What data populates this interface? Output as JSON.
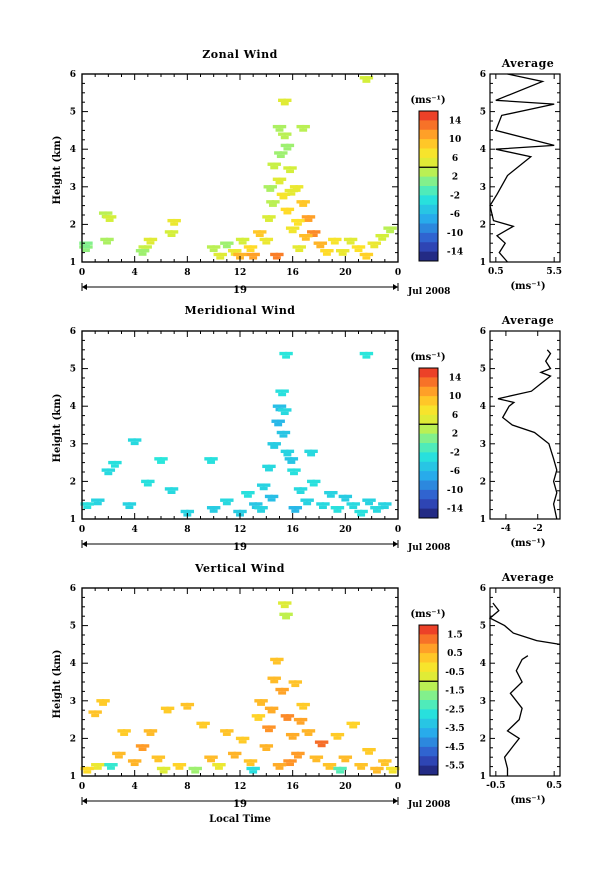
{
  "chart_data": [
    {
      "type": "heatmap",
      "title": "Zonal Wind",
      "ylabel": "Height (km)",
      "xticks": [
        "0",
        "4",
        "8",
        "12",
        "16",
        "20",
        "0"
      ],
      "yticks": [
        "1",
        "2",
        "3",
        "4",
        "5",
        "6"
      ],
      "xlim": [
        0,
        24
      ],
      "ylim": [
        1,
        6
      ],
      "date_axis": {
        "day": "19",
        "month_year": "Jul 2008"
      },
      "colorbar": {
        "unit": "(ms⁻¹)",
        "ticks": [
          "14",
          "10",
          "6",
          "2",
          "-2",
          "-6",
          "-10",
          "-14"
        ],
        "range": [
          -16,
          16
        ]
      },
      "average_profile": {
        "title": "Average",
        "xlabel": "(ms⁻¹)",
        "xticks": [
          "0.5",
          "5.5"
        ],
        "xlim": [
          0,
          6
        ],
        "points": [
          [
            1.5,
            1.0
          ],
          [
            0.8,
            1.25
          ],
          [
            1.3,
            1.5
          ],
          [
            0.6,
            1.7
          ],
          [
            2.0,
            1.95
          ],
          [
            0.3,
            2.1
          ],
          [
            0.0,
            2.5
          ],
          [
            0.6,
            2.8
          ],
          [
            1.5,
            3.3
          ],
          [
            3.5,
            3.8
          ],
          [
            0.5,
            4.0
          ],
          [
            5.5,
            4.1
          ],
          [
            0.5,
            4.5
          ],
          [
            1.0,
            4.9
          ],
          [
            5.5,
            5.2
          ],
          [
            0.5,
            5.3
          ],
          [
            4.5,
            5.8
          ],
          [
            1.5,
            6.0
          ]
        ]
      },
      "cells": [
        [
          0.3,
          1.4,
          1.5
        ],
        [
          0.3,
          1.5,
          1.0
        ],
        [
          1.8,
          2.3,
          3.0
        ],
        [
          2.1,
          2.2,
          4.0
        ],
        [
          1.9,
          1.6,
          2.5
        ],
        [
          4.8,
          1.4,
          3.5
        ],
        [
          4.6,
          1.3,
          2.0
        ],
        [
          5.2,
          1.6,
          5.0
        ],
        [
          7.0,
          2.1,
          6.0
        ],
        [
          6.8,
          1.8,
          4.0
        ],
        [
          10.0,
          1.4,
          3.0
        ],
        [
          10.5,
          1.2,
          5.0
        ],
        [
          11.0,
          1.5,
          2.0
        ],
        [
          11.6,
          1.3,
          6.0
        ],
        [
          12.2,
          1.6,
          4.0
        ],
        [
          12.8,
          1.4,
          8.0
        ],
        [
          13.5,
          1.8,
          9.0
        ],
        [
          14.0,
          1.6,
          6.0
        ],
        [
          14.2,
          2.2,
          4.5
        ],
        [
          14.5,
          2.6,
          3.0
        ],
        [
          14.3,
          3.0,
          2.5
        ],
        [
          14.6,
          3.6,
          3.5
        ],
        [
          15.0,
          3.2,
          5.0
        ],
        [
          15.3,
          2.8,
          7.0
        ],
        [
          15.6,
          2.4,
          8.0
        ],
        [
          15.1,
          3.9,
          2.0
        ],
        [
          15.8,
          3.5,
          4.0
        ],
        [
          16.3,
          3.0,
          6.0
        ],
        [
          16.8,
          2.6,
          9.0
        ],
        [
          17.2,
          2.2,
          11.0
        ],
        [
          17.6,
          1.8,
          12.0
        ],
        [
          18.1,
          1.5,
          10.0
        ],
        [
          18.6,
          1.3,
          8.0
        ],
        [
          19.2,
          1.6,
          7.0
        ],
        [
          16.0,
          1.9,
          6.5
        ],
        [
          16.5,
          1.4,
          5.5
        ],
        [
          17.0,
          1.7,
          9.5
        ],
        [
          19.8,
          1.3,
          6.0
        ],
        [
          20.4,
          1.6,
          5.0
        ],
        [
          21.0,
          1.4,
          7.5
        ],
        [
          21.6,
          1.2,
          8.5
        ],
        [
          22.2,
          1.5,
          6.0
        ],
        [
          22.8,
          1.7,
          4.0
        ],
        [
          23.4,
          1.9,
          3.0
        ],
        [
          15.4,
          4.4,
          3.0
        ],
        [
          15.6,
          4.1,
          2.0
        ],
        [
          15.4,
          5.3,
          5.0
        ],
        [
          15.0,
          4.6,
          2.5
        ],
        [
          16.8,
          4.6,
          3.0
        ],
        [
          21.6,
          5.9,
          4.0
        ],
        [
          13.0,
          1.2,
          11.0
        ],
        [
          14.8,
          1.2,
          12.5
        ],
        [
          12.0,
          1.2,
          10.0
        ],
        [
          16.4,
          2.1,
          7.5
        ],
        [
          15.9,
          2.9,
          5.5
        ]
      ]
    },
    {
      "type": "heatmap",
      "title": "Meridional Wind",
      "ylabel": "Height (km)",
      "xticks": [
        "0",
        "4",
        "8",
        "12",
        "16",
        "20",
        "0"
      ],
      "yticks": [
        "1",
        "2",
        "3",
        "4",
        "5",
        "6"
      ],
      "xlim": [
        0,
        24
      ],
      "ylim": [
        1,
        6
      ],
      "date_axis": {
        "day": "19",
        "month_year": "Jul 2008"
      },
      "colorbar": {
        "unit": "(ms⁻¹)",
        "ticks": [
          "14",
          "10",
          "6",
          "2",
          "-2",
          "-6",
          "-10",
          "-14"
        ],
        "range": [
          -16,
          16
        ]
      },
      "average_profile": {
        "title": "Average",
        "xlabel": "(ms⁻¹)",
        "xticks": [
          "-4",
          "-2"
        ],
        "xlim": [
          -5,
          -0.6
        ],
        "points": [
          [
            -0.8,
            1.0
          ],
          [
            -1.0,
            1.4
          ],
          [
            -0.8,
            1.7
          ],
          [
            -1.0,
            2.0
          ],
          [
            -0.8,
            2.3
          ],
          [
            -1.0,
            2.6
          ],
          [
            -1.3,
            3.0
          ],
          [
            -2.2,
            3.3
          ],
          [
            -3.6,
            3.5
          ],
          [
            -4.2,
            3.7
          ],
          [
            -3.8,
            4.0
          ],
          [
            -3.5,
            4.1
          ],
          [
            -4.5,
            4.2
          ],
          [
            -2.4,
            4.4
          ],
          [
            -1.8,
            4.6
          ],
          [
            -1.2,
            4.8
          ],
          [
            -1.8,
            4.9
          ],
          [
            -1.2,
            5.0
          ],
          [
            -1.5,
            5.2
          ],
          [
            -1.2,
            5.4
          ],
          [
            -1.4,
            5.5
          ]
        ]
      },
      "cells": [
        [
          0.4,
          1.4,
          -3.0
        ],
        [
          1.2,
          1.5,
          -4.0
        ],
        [
          2.0,
          2.3,
          -3.5
        ],
        [
          2.5,
          2.5,
          -3.0
        ],
        [
          4.0,
          3.1,
          -3.5
        ],
        [
          3.6,
          1.4,
          -4.0
        ],
        [
          5.0,
          2.0,
          -3.0
        ],
        [
          6.0,
          2.6,
          -2.5
        ],
        [
          6.8,
          1.8,
          -3.5
        ],
        [
          8.0,
          1.2,
          -4.0
        ],
        [
          9.8,
          2.6,
          -3.0
        ],
        [
          10.0,
          1.3,
          -4.5
        ],
        [
          11.0,
          1.5,
          -3.5
        ],
        [
          12.0,
          1.2,
          -4.5
        ],
        [
          12.6,
          1.7,
          -3.0
        ],
        [
          13.2,
          1.4,
          -5.0
        ],
        [
          13.8,
          1.9,
          -4.0
        ],
        [
          14.2,
          2.4,
          -3.5
        ],
        [
          14.6,
          3.0,
          -4.5
        ],
        [
          14.9,
          3.6,
          -6.0
        ],
        [
          15.3,
          3.3,
          -5.0
        ],
        [
          15.6,
          2.8,
          -4.0
        ],
        [
          16.1,
          2.3,
          -3.0
        ],
        [
          16.6,
          1.8,
          -3.5
        ],
        [
          17.1,
          1.5,
          -4.0
        ],
        [
          17.6,
          2.0,
          -3.0
        ],
        [
          18.3,
          1.4,
          -3.5
        ],
        [
          18.9,
          1.7,
          -4.0
        ],
        [
          19.4,
          1.3,
          -3.0
        ],
        [
          20.0,
          1.6,
          -4.5
        ],
        [
          20.6,
          1.4,
          -3.5
        ],
        [
          21.2,
          1.2,
          -3.0
        ],
        [
          21.8,
          1.5,
          -4.0
        ],
        [
          22.4,
          1.3,
          -3.5
        ],
        [
          23.0,
          1.4,
          -4.0
        ],
        [
          15.2,
          4.4,
          -3.0
        ],
        [
          15.0,
          4.0,
          -5.5
        ],
        [
          15.5,
          5.4,
          -2.5
        ],
        [
          21.6,
          5.4,
          -2.5
        ],
        [
          15.4,
          3.9,
          -3.5
        ],
        [
          15.9,
          2.6,
          -5.0
        ],
        [
          14.4,
          1.6,
          -5.5
        ],
        [
          16.2,
          1.3,
          -6.0
        ],
        [
          13.6,
          1.3,
          -4.0
        ],
        [
          17.4,
          2.8,
          -3.5
        ]
      ]
    },
    {
      "type": "heatmap",
      "title": "Vertical Wind",
      "ylabel": "Height (km)",
      "xlabel": "Local Time",
      "xticks": [
        "0",
        "4",
        "8",
        "12",
        "16",
        "20",
        "0"
      ],
      "yticks": [
        "1",
        "2",
        "3",
        "4",
        "5",
        "6"
      ],
      "xlim": [
        0,
        24
      ],
      "ylim": [
        1,
        6
      ],
      "date_axis": {
        "day": "19",
        "month_year": "Jul 2008"
      },
      "colorbar": {
        "unit": "(ms⁻¹)",
        "ticks": [
          "1.5",
          "0.5",
          "-0.5",
          "-1.5",
          "-2.5",
          "-3.5",
          "-4.5",
          "-5.5"
        ],
        "range": [
          -6,
          2
        ]
      },
      "average_profile": {
        "title": "Average",
        "xlabel": "(ms⁻¹)",
        "xticks": [
          "-0.5",
          "0.5"
        ],
        "xlim": [
          -0.6,
          0.6
        ],
        "points": [
          [
            -0.3,
            1.0
          ],
          [
            -0.3,
            1.2
          ],
          [
            -0.35,
            1.5
          ],
          [
            -0.2,
            1.8
          ],
          [
            -0.1,
            2.0
          ],
          [
            -0.3,
            2.2
          ],
          [
            -0.1,
            2.5
          ],
          [
            -0.05,
            2.8
          ],
          [
            -0.25,
            3.2
          ],
          [
            -0.05,
            3.5
          ],
          [
            -0.15,
            3.8
          ],
          [
            -0.05,
            4.1
          ],
          [
            0.05,
            4.2
          ]
        ],
        "upper_points": [
          [
            0.6,
            4.5
          ],
          [
            0.2,
            4.6
          ],
          [
            -0.2,
            4.8
          ],
          [
            -0.35,
            5.0
          ],
          [
            -0.6,
            5.2
          ],
          [
            -0.45,
            5.4
          ],
          [
            -0.55,
            5.6
          ]
        ]
      },
      "cells": [
        [
          0.4,
          1.2,
          0.0
        ],
        [
          1.2,
          1.3,
          -0.5
        ],
        [
          1.0,
          2.7,
          0.3
        ],
        [
          1.6,
          3.0,
          0.2
        ],
        [
          2.2,
          1.3,
          -2.5
        ],
        [
          2.8,
          1.6,
          0.4
        ],
        [
          3.2,
          2.2,
          0.2
        ],
        [
          4.0,
          1.4,
          0.5
        ],
        [
          4.6,
          1.8,
          0.8
        ],
        [
          5.2,
          2.2,
          0.4
        ],
        [
          5.8,
          1.5,
          0.3
        ],
        [
          6.2,
          1.2,
          -0.8
        ],
        [
          6.5,
          2.8,
          0.2
        ],
        [
          7.4,
          1.3,
          0.1
        ],
        [
          8.0,
          2.9,
          0.3
        ],
        [
          8.6,
          1.2,
          -1.5
        ],
        [
          9.2,
          2.4,
          0.2
        ],
        [
          9.8,
          1.5,
          0.4
        ],
        [
          10.4,
          1.3,
          -0.5
        ],
        [
          11.0,
          2.2,
          0.3
        ],
        [
          11.6,
          1.6,
          0.5
        ],
        [
          12.2,
          2.0,
          0.2
        ],
        [
          12.8,
          1.4,
          0.3
        ],
        [
          13.4,
          2.6,
          0.1
        ],
        [
          14.0,
          1.8,
          0.5
        ],
        [
          14.4,
          2.8,
          0.6
        ],
        [
          14.6,
          3.6,
          0.4
        ],
        [
          14.8,
          4.1,
          0.3
        ],
        [
          15.2,
          3.3,
          0.7
        ],
        [
          15.6,
          2.6,
          1.0
        ],
        [
          16.0,
          2.1,
          0.6
        ],
        [
          16.4,
          1.6,
          0.8
        ],
        [
          16.8,
          2.9,
          0.2
        ],
        [
          17.2,
          2.2,
          0.5
        ],
        [
          17.8,
          1.5,
          0.4
        ],
        [
          18.2,
          1.9,
          1.3
        ],
        [
          18.8,
          1.3,
          0.3
        ],
        [
          19.4,
          2.1,
          0.2
        ],
        [
          20.0,
          1.5,
          0.4
        ],
        [
          20.6,
          2.4,
          0.1
        ],
        [
          21.2,
          1.3,
          0.3
        ],
        [
          21.8,
          1.7,
          0.2
        ],
        [
          22.4,
          1.2,
          0.4
        ],
        [
          23.0,
          1.4,
          0.3
        ],
        [
          23.6,
          1.2,
          -0.3
        ],
        [
          15.5,
          5.3,
          -1.2
        ],
        [
          15.4,
          5.6,
          -0.8
        ],
        [
          13.0,
          1.2,
          -2.8
        ],
        [
          19.6,
          1.2,
          -2.2
        ],
        [
          15.0,
          1.3,
          0.6
        ],
        [
          14.2,
          2.3,
          0.9
        ],
        [
          16.6,
          2.5,
          0.7
        ],
        [
          15.8,
          1.4,
          0.9
        ],
        [
          16.2,
          3.5,
          0.3
        ],
        [
          13.6,
          3.0,
          0.4
        ]
      ]
    }
  ]
}
